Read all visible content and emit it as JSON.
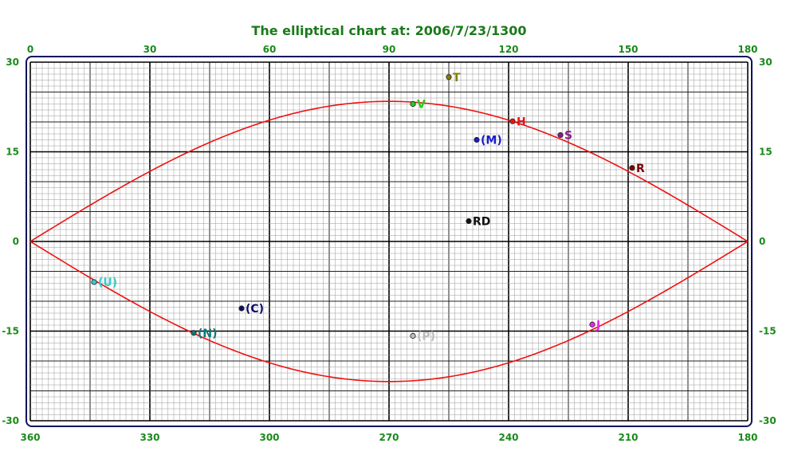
{
  "chart_data": {
    "type": "scatter",
    "title": "The elliptical chart at: 2006/7/23/1300",
    "top_axis_ticks": [
      0,
      30,
      60,
      90,
      120,
      150,
      180
    ],
    "bottom_axis_ticks": [
      360,
      330,
      300,
      270,
      240,
      210,
      180
    ],
    "y_axis_ticks": [
      30,
      15,
      0,
      -15,
      -30
    ],
    "xlim": [
      0,
      180
    ],
    "ylim": [
      -30,
      30
    ],
    "grid": true,
    "curve": {
      "name": "",
      "color": "#ee1111",
      "amplitude": 23.44
    },
    "points": [
      {
        "label": "T",
        "x": 105,
        "y": 27.5,
        "color": "#808000"
      },
      {
        "label": "V",
        "x": 96,
        "y": 23.0,
        "color": "#22cc22"
      },
      {
        "label": "H",
        "x": 121,
        "y": 20.1,
        "color": "#ee1111"
      },
      {
        "label": "S",
        "x": 133,
        "y": 17.8,
        "color": "#8a1a8a"
      },
      {
        "label": "(M)",
        "x": 112,
        "y": 17.0,
        "color": "#1a1acc"
      },
      {
        "label": "R",
        "x": 151,
        "y": 12.3,
        "color": "#800000"
      },
      {
        "label": "RD",
        "x": 110,
        "y": 3.4,
        "color": "#111111"
      },
      {
        "label": "(U)",
        "x": 16,
        "y": -6.8,
        "color": "#33cccc"
      },
      {
        "label": "(C)",
        "x": 53,
        "y": -11.2,
        "color": "#0d0d66"
      },
      {
        "label": "(N)",
        "x": 41,
        "y": -15.3,
        "color": "#117777"
      },
      {
        "label": "(P)",
        "x": 96,
        "y": -15.8,
        "color": "#bbbbbb"
      },
      {
        "label": "J",
        "x": 141,
        "y": -13.9,
        "color": "#ee22ee"
      }
    ]
  }
}
